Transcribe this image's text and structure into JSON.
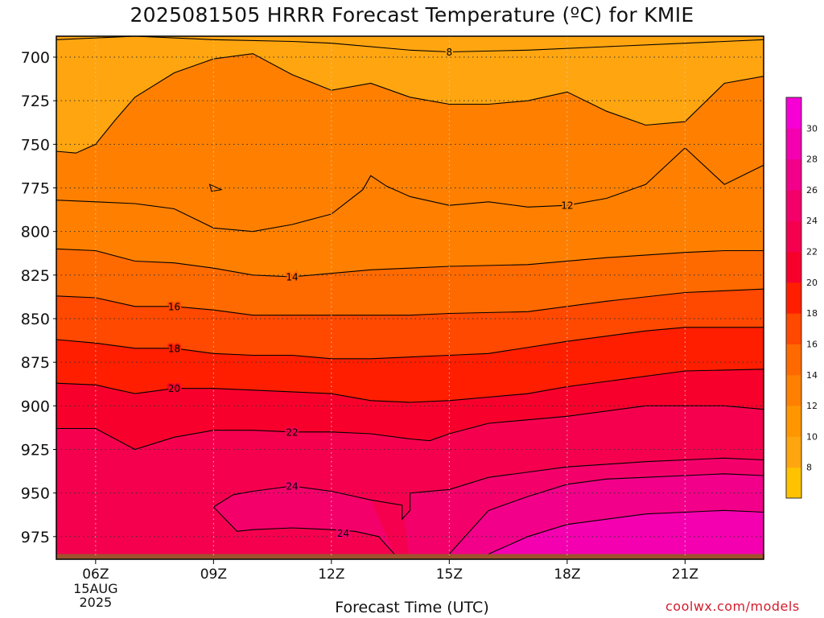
{
  "chart_data": {
    "type": "heatmap",
    "title": "2025081505 HRRR Forecast Temperature (ºC) for KMIE",
    "xlabel": "Forecast Time (UTC)",
    "ylabel": "",
    "x_ticks": [
      {
        "hour": 6,
        "label": "06Z",
        "sublabel": [
          "15AUG",
          "2025"
        ]
      },
      {
        "hour": 9,
        "label": "09Z"
      },
      {
        "hour": 12,
        "label": "12Z"
      },
      {
        "hour": 15,
        "label": "15Z"
      },
      {
        "hour": 18,
        "label": "18Z"
      },
      {
        "hour": 21,
        "label": "21Z"
      }
    ],
    "xlim": [
      5,
      23
    ],
    "y_ticks": [
      700,
      725,
      750,
      775,
      800,
      825,
      850,
      875,
      900,
      925,
      950,
      975
    ],
    "ylim": [
      688,
      988
    ],
    "y_scale": "pressure (inverted)",
    "grid": true,
    "colorbar": {
      "levels": [
        6,
        8,
        10,
        12,
        14,
        16,
        18,
        20,
        22,
        24,
        26,
        28,
        30,
        32
      ],
      "tick_labels": [
        "8",
        "10",
        "12",
        "14",
        "16",
        "18",
        "20",
        "22",
        "24",
        "26",
        "28",
        "30"
      ],
      "colors": [
        "#ffc200",
        "#ffa510",
        "#ff9600",
        "#ff8000",
        "#ff6a00",
        "#ff4800",
        "#ff1e00",
        "#f8002c",
        "#f5004f",
        "#f4006b",
        "#f20089",
        "#f500b0",
        "#f600d6"
      ],
      "position": "right"
    },
    "series": [
      {
        "name": "8",
        "label_at": {
          "x": 15,
          "y": 697
        },
        "points": [
          [
            5,
            690
          ],
          [
            7,
            688
          ],
          [
            9,
            690
          ],
          [
            11,
            691
          ],
          [
            12,
            692
          ],
          [
            14,
            696
          ],
          [
            15,
            697
          ],
          [
            17,
            696
          ],
          [
            19,
            694
          ],
          [
            21,
            692
          ],
          [
            22,
            691
          ],
          [
            23,
            690
          ]
        ]
      },
      {
        "name": "10",
        "label_at": null,
        "points": [
          [
            5,
            754
          ],
          [
            5.5,
            755
          ],
          [
            6,
            750
          ],
          [
            6.5,
            736
          ],
          [
            7,
            723
          ],
          [
            8,
            709
          ],
          [
            9,
            701
          ],
          [
            10,
            698
          ],
          [
            11,
            710
          ],
          [
            12,
            719
          ],
          [
            13,
            715
          ],
          [
            14,
            723
          ],
          [
            15,
            727
          ],
          [
            16,
            727
          ],
          [
            17,
            725
          ],
          [
            18,
            720
          ],
          [
            19,
            731
          ],
          [
            20,
            739
          ],
          [
            21,
            737
          ],
          [
            22,
            715
          ],
          [
            23,
            711
          ]
        ]
      },
      {
        "name": "12",
        "label_at": {
          "x": 18,
          "y": 785
        },
        "points": [
          [
            5,
            782
          ],
          [
            6,
            783
          ],
          [
            7,
            784
          ],
          [
            8,
            787
          ],
          [
            9,
            798
          ],
          [
            10,
            800
          ],
          [
            11,
            796
          ],
          [
            12,
            790
          ],
          [
            12.8,
            776
          ],
          [
            13,
            768
          ],
          [
            13.4,
            774
          ],
          [
            14,
            780
          ],
          [
            15,
            785
          ],
          [
            16,
            783
          ],
          [
            17,
            786
          ],
          [
            18,
            785
          ],
          [
            19,
            781
          ],
          [
            20,
            773
          ],
          [
            21,
            752
          ],
          [
            22,
            773
          ],
          [
            23,
            762
          ]
        ]
      },
      {
        "name": "14",
        "label_at": {
          "x": 11,
          "y": 826
        },
        "points": [
          [
            5,
            810
          ],
          [
            6,
            811
          ],
          [
            7,
            817
          ],
          [
            8,
            818
          ],
          [
            9,
            821
          ],
          [
            10,
            825
          ],
          [
            11,
            826
          ],
          [
            12,
            824
          ],
          [
            13,
            822
          ],
          [
            14,
            821
          ],
          [
            15,
            820
          ],
          [
            17,
            819
          ],
          [
            19,
            815
          ],
          [
            21,
            812
          ],
          [
            22,
            811
          ],
          [
            23,
            811
          ]
        ]
      },
      {
        "name": "16",
        "label_at": {
          "x": 8,
          "y": 843
        },
        "points": [
          [
            5,
            837
          ],
          [
            6,
            838
          ],
          [
            7,
            843
          ],
          [
            8,
            843
          ],
          [
            9,
            845
          ],
          [
            10,
            848
          ],
          [
            12,
            848
          ],
          [
            14,
            848
          ],
          [
            15,
            847
          ],
          [
            17,
            846
          ],
          [
            19,
            840
          ],
          [
            21,
            835
          ],
          [
            23,
            833
          ]
        ]
      },
      {
        "name": "18",
        "label_at": {
          "x": 8,
          "y": 867
        },
        "points": [
          [
            5,
            862
          ],
          [
            6,
            864
          ],
          [
            7,
            867
          ],
          [
            8,
            867
          ],
          [
            9,
            870
          ],
          [
            10,
            871
          ],
          [
            11,
            871
          ],
          [
            12,
            873
          ],
          [
            13,
            873
          ],
          [
            15,
            871
          ],
          [
            16,
            870
          ],
          [
            18,
            863
          ],
          [
            20,
            857
          ],
          [
            21,
            855
          ],
          [
            23,
            855
          ]
        ]
      },
      {
        "name": "20",
        "label_at": {
          "x": 8,
          "y": 890
        },
        "points": [
          [
            5,
            887
          ],
          [
            6,
            888
          ],
          [
            7,
            893
          ],
          [
            8,
            890
          ],
          [
            9,
            890
          ],
          [
            10,
            891
          ],
          [
            12,
            893
          ],
          [
            13,
            897
          ],
          [
            14,
            898
          ],
          [
            15,
            897
          ],
          [
            16,
            895
          ],
          [
            17,
            893
          ],
          [
            18,
            889
          ],
          [
            20,
            883
          ],
          [
            21,
            880
          ],
          [
            23,
            879
          ]
        ]
      },
      {
        "name": "22",
        "label_at": {
          "x": 11,
          "y": 915
        },
        "points": [
          [
            5,
            913
          ],
          [
            6,
            913
          ],
          [
            7,
            925
          ],
          [
            8,
            918
          ],
          [
            9,
            914
          ],
          [
            10,
            914
          ],
          [
            11,
            915
          ],
          [
            12,
            915
          ],
          [
            13,
            916
          ],
          [
            14,
            919
          ],
          [
            14.5,
            920
          ],
          [
            15,
            916
          ],
          [
            16,
            910
          ],
          [
            18,
            906
          ],
          [
            20,
            900
          ],
          [
            22,
            900
          ],
          [
            23,
            902
          ]
        ]
      },
      {
        "name": "24",
        "label_at": {
          "x": 11,
          "y": 946
        },
        "points": [
          [
            9,
            958
          ],
          [
            9.5,
            951
          ],
          [
            10,
            949
          ],
          [
            11,
            946
          ],
          [
            12,
            949
          ],
          [
            13,
            954
          ],
          [
            13.8,
            957
          ],
          [
            13.8,
            965
          ],
          [
            14,
            960
          ],
          [
            14,
            950
          ],
          [
            15,
            948
          ],
          [
            16,
            941
          ],
          [
            18,
            935
          ],
          [
            20,
            932
          ],
          [
            22,
            930
          ],
          [
            23,
            931
          ]
        ]
      },
      {
        "name": "24",
        "label_at": {
          "x": 12.3,
          "y": 973
        },
        "points": [
          [
            9,
            958
          ],
          [
            9.6,
            972
          ],
          [
            10,
            971
          ],
          [
            11,
            970
          ],
          [
            12,
            971
          ],
          [
            12.6,
            972
          ],
          [
            13.2,
            975
          ],
          [
            13.6,
            985
          ]
        ]
      },
      {
        "name": "26",
        "label_at": null,
        "points": [
          [
            15,
            985
          ],
          [
            16,
            960
          ],
          [
            17,
            952
          ],
          [
            18,
            945
          ],
          [
            19,
            942
          ],
          [
            20,
            941
          ],
          [
            21,
            940
          ],
          [
            22,
            939
          ],
          [
            23,
            940
          ]
        ]
      },
      {
        "name": "28",
        "label_at": null,
        "points": [
          [
            16,
            985
          ],
          [
            17,
            975
          ],
          [
            18,
            968
          ],
          [
            19,
            965
          ],
          [
            20,
            962
          ],
          [
            21,
            961
          ],
          [
            22,
            960
          ],
          [
            23,
            961
          ]
        ]
      }
    ],
    "ground_level_hpa": 985
  },
  "watermark": "coolwx.com/models"
}
